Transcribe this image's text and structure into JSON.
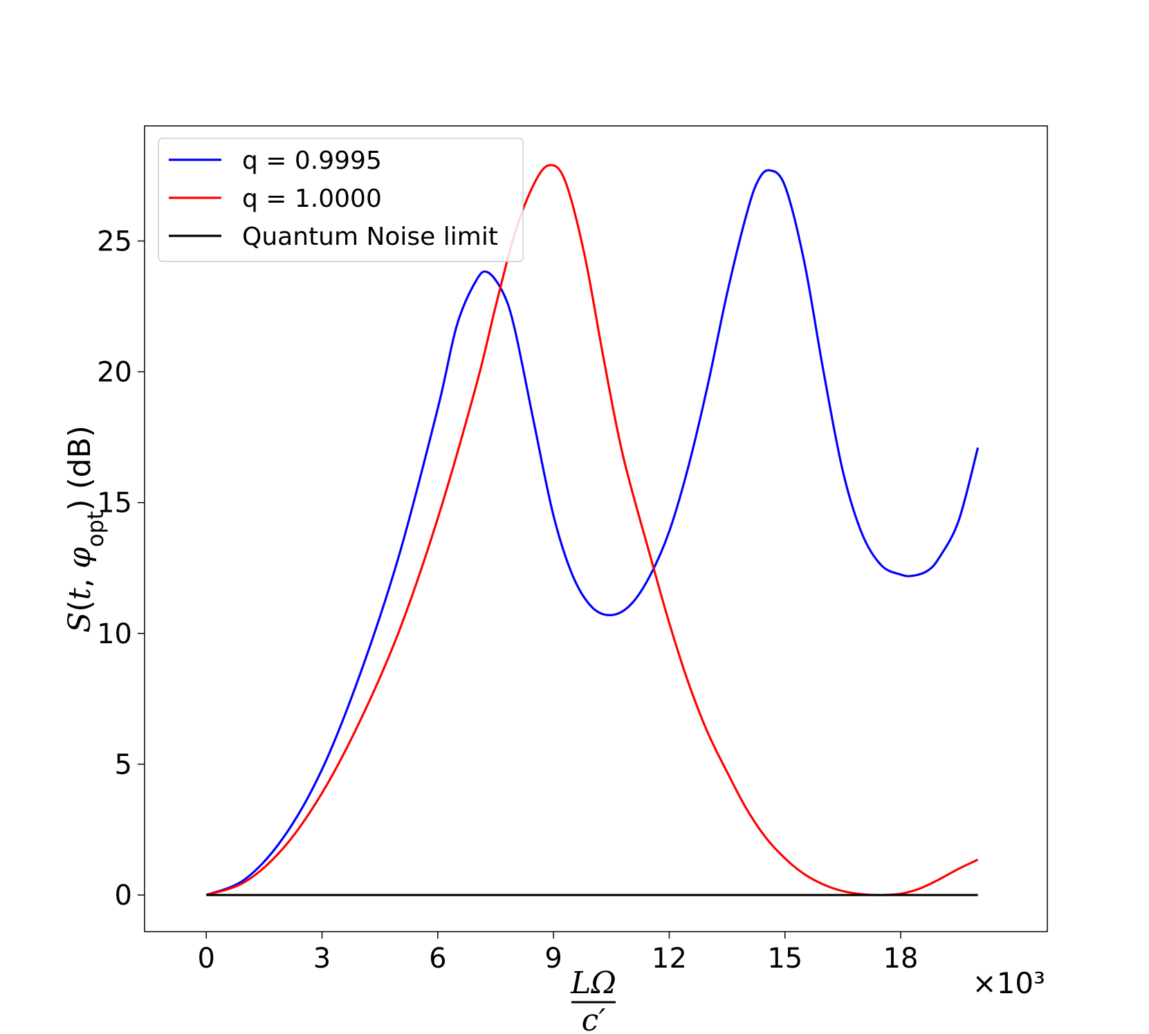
{
  "chart_data": {
    "type": "line",
    "xlabel": "LΩ/c′",
    "xlabel_numerator": "LΩ",
    "xlabel_denominator": "c′",
    "x_multiplier": "×10³",
    "ylabel": "S(t, φopt) (dB)",
    "xlim": [
      -1.6,
      21.8
    ],
    "ylim": [
      -1.4,
      29.4
    ],
    "x_ticks": [
      0,
      3,
      6,
      9,
      12,
      15,
      18
    ],
    "y_ticks": [
      0,
      5,
      10,
      15,
      20,
      25
    ],
    "legend_position": "top-left",
    "grid": false,
    "series": [
      {
        "name": "q = 0.9995",
        "color": "#0000ff",
        "points": [
          [
            0,
            0
          ],
          [
            1,
            0.6
          ],
          [
            2,
            2.2
          ],
          [
            3,
            4.8
          ],
          [
            4,
            8.5
          ],
          [
            5,
            13.0
          ],
          [
            6,
            18.6
          ],
          [
            6.5,
            21.8
          ],
          [
            7,
            23.5
          ],
          [
            7.3,
            23.8
          ],
          [
            7.7,
            23.0
          ],
          [
            8,
            21.6
          ],
          [
            8.5,
            18.0
          ],
          [
            9,
            14.5
          ],
          [
            9.5,
            12.2
          ],
          [
            10,
            11.0
          ],
          [
            10.5,
            10.7
          ],
          [
            11,
            11.1
          ],
          [
            11.5,
            12.2
          ],
          [
            12,
            13.9
          ],
          [
            12.5,
            16.4
          ],
          [
            13,
            19.5
          ],
          [
            13.5,
            23.0
          ],
          [
            14,
            26.0
          ],
          [
            14.3,
            27.3
          ],
          [
            14.6,
            27.7
          ],
          [
            15,
            27.1
          ],
          [
            15.5,
            24.2
          ],
          [
            16,
            20.0
          ],
          [
            16.5,
            16.2
          ],
          [
            17,
            13.8
          ],
          [
            17.5,
            12.6
          ],
          [
            18,
            12.25
          ],
          [
            18.3,
            12.2
          ],
          [
            18.7,
            12.4
          ],
          [
            19,
            12.9
          ],
          [
            19.5,
            14.3
          ],
          [
            20,
            17.1
          ]
        ]
      },
      {
        "name": "q = 1.0000",
        "color": "#ff0000",
        "points": [
          [
            0,
            0
          ],
          [
            1,
            0.5
          ],
          [
            2,
            1.8
          ],
          [
            3,
            3.9
          ],
          [
            4,
            6.7
          ],
          [
            5,
            10.1
          ],
          [
            6,
            14.4
          ],
          [
            7,
            19.5
          ],
          [
            7.5,
            22.5
          ],
          [
            8,
            25.3
          ],
          [
            8.5,
            27.2
          ],
          [
            8.9,
            27.9
          ],
          [
            9.3,
            27.3
          ],
          [
            9.8,
            24.5
          ],
          [
            10.3,
            20.5
          ],
          [
            10.8,
            16.8
          ],
          [
            11.5,
            13.0
          ],
          [
            12,
            10.4
          ],
          [
            12.5,
            8.1
          ],
          [
            13,
            6.2
          ],
          [
            13.5,
            4.7
          ],
          [
            14,
            3.3
          ],
          [
            14.5,
            2.2
          ],
          [
            15,
            1.4
          ],
          [
            15.5,
            0.8
          ],
          [
            16,
            0.4
          ],
          [
            16.5,
            0.15
          ],
          [
            17,
            0.03
          ],
          [
            17.5,
            0
          ],
          [
            18,
            0.05
          ],
          [
            18.5,
            0.25
          ],
          [
            19,
            0.6
          ],
          [
            19.5,
            1.0
          ],
          [
            20,
            1.35
          ]
        ]
      },
      {
        "name": "Quantum Noise limit",
        "color": "#000000",
        "points": [
          [
            0,
            0
          ],
          [
            20,
            0
          ]
        ]
      }
    ]
  }
}
